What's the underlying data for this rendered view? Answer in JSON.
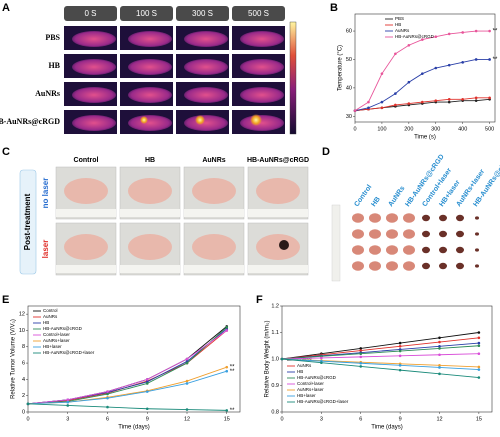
{
  "panel_labels": [
    "A",
    "B",
    "C",
    "D",
    "E",
    "F"
  ],
  "thermal": {
    "times": [
      "0 S",
      "100 S",
      "300 S",
      "500 S"
    ],
    "groups": [
      "PBS",
      "HB",
      "AuNRs",
      "HB-AuNRs@cRGD"
    ]
  },
  "photos": {
    "columns": [
      "Control",
      "HB",
      "AuNRs",
      "HB-AuNRs@cRGD"
    ],
    "side_label": "Post-treatment",
    "rows": [
      "no laser",
      "laser"
    ]
  },
  "tumors": {
    "labels": [
      "Control",
      "HB",
      "AuNRs",
      "HB-AuNRs@cRGD",
      "Control+laser",
      "HB+laser",
      "AuNRs+laser",
      "HB-AuNRs@cRGD+laser"
    ]
  },
  "chart_data": [
    {
      "type": "line",
      "xlabel": "Time (s)",
      "ylabel": "Temperature (°C)",
      "x": [
        0,
        50,
        100,
        150,
        200,
        250,
        300,
        350,
        400,
        450,
        500
      ],
      "xlim": [
        0,
        520
      ],
      "xticks": [
        0,
        100,
        200,
        300,
        400,
        500
      ],
      "ylim": [
        28,
        66
      ],
      "yticks": [
        30,
        40,
        50,
        60
      ],
      "legend": "upper left",
      "series": [
        {
          "name": "PBS",
          "color": "#222222",
          "values": [
            32,
            32.5,
            33,
            33.5,
            34,
            34.5,
            35,
            35,
            35.5,
            35.5,
            36
          ]
        },
        {
          "name": "HB",
          "color": "#e0312b",
          "values": [
            32,
            32.5,
            33,
            34,
            34.5,
            35,
            35.5,
            36,
            36,
            36.5,
            36.5
          ]
        },
        {
          "name": "AuNRs",
          "color": "#2a3fa8",
          "values": [
            32,
            33,
            35,
            38,
            42,
            45,
            47,
            48,
            49,
            50,
            50
          ]
        },
        {
          "name": "HB-AuNRs@cRGD",
          "color": "#e8559a",
          "values": [
            32,
            35,
            45,
            52,
            55,
            57,
            58,
            59,
            59.5,
            60,
            60
          ]
        }
      ],
      "annotations": [
        {
          "text": "**",
          "series": 3
        },
        {
          "text": "**",
          "series": 2
        }
      ]
    },
    {
      "type": "line",
      "xlabel": "Time (days)",
      "ylabel": "Relative Tumor Volume (V/V₀)",
      "x": [
        0,
        3,
        6,
        9,
        12,
        15
      ],
      "xlim": [
        0,
        16
      ],
      "xticks": [
        0,
        3,
        6,
        9,
        12,
        15
      ],
      "ylim": [
        0,
        13
      ],
      "yticks": [
        0,
        2,
        4,
        6,
        8,
        10,
        12
      ],
      "legend": "upper left",
      "series": [
        {
          "name": "Control",
          "color": "#111111",
          "values": [
            1,
            1.5,
            2.5,
            4,
            6.5,
            10.5
          ]
        },
        {
          "name": "AuNRs",
          "color": "#e0312b",
          "values": [
            1,
            1.4,
            2.3,
            3.8,
            6,
            10
          ]
        },
        {
          "name": "HB",
          "color": "#2a3fa8",
          "values": [
            1,
            1.5,
            2.4,
            3.7,
            6.2,
            10.2
          ]
        },
        {
          "name": "HB-AuNRs@cRGD",
          "color": "#2e8b57",
          "values": [
            1,
            1.3,
            2.2,
            3.5,
            6,
            10.4
          ]
        },
        {
          "name": "Control+laser",
          "color": "#d94fd9",
          "values": [
            1,
            1.5,
            2.5,
            4,
            6.5,
            10
          ]
        },
        {
          "name": "AuNRs+laser",
          "color": "#f0a030",
          "values": [
            1,
            1.2,
            1.8,
            2.6,
            3.8,
            5.5
          ]
        },
        {
          "name": "HB+laser",
          "color": "#3aa0e0",
          "values": [
            1,
            1.2,
            1.7,
            2.5,
            3.5,
            5
          ]
        },
        {
          "name": "HB-AuNRs@cRGD+laser",
          "color": "#1a8a7a",
          "values": [
            1,
            0.8,
            0.6,
            0.4,
            0.3,
            0.2
          ]
        }
      ],
      "annotations": [
        {
          "text": "**",
          "series": 5
        },
        {
          "text": "**",
          "series": 6
        },
        {
          "text": "**",
          "series": 7
        }
      ]
    },
    {
      "type": "line",
      "xlabel": "Time (days)",
      "ylabel": "Relative Body Weight (m/m₀)",
      "x": [
        0,
        3,
        6,
        9,
        12,
        15
      ],
      "xlim": [
        0,
        16
      ],
      "xticks": [
        0,
        3,
        6,
        9,
        12,
        15
      ],
      "ylim": [
        0.8,
        1.2
      ],
      "yticks": [
        0.8,
        0.9,
        {
          "value": 1,
          "label": "1.0"
        },
        1.1,
        1.2
      ],
      "legend": "lower left",
      "series": [
        {
          "name": "Control",
          "color": "#111111",
          "values": [
            1,
            1.02,
            1.04,
            1.06,
            1.08,
            1.1
          ]
        },
        {
          "name": "AuNRs",
          "color": "#e0312b",
          "values": [
            1,
            1.016,
            1.032,
            1.048,
            1.064,
            1.08
          ]
        },
        {
          "name": "HB",
          "color": "#2a3fa8",
          "values": [
            1,
            1.012,
            1.024,
            1.036,
            1.048,
            1.06
          ]
        },
        {
          "name": "HB-AuNRs@cRGD",
          "color": "#2e8b57",
          "values": [
            1,
            1.01,
            1.02,
            1.03,
            1.04,
            1.05
          ]
        },
        {
          "name": "Control+laser",
          "color": "#d94fd9",
          "values": [
            1,
            1.004,
            1.008,
            1.012,
            1.016,
            1.02
          ]
        },
        {
          "name": "AuNRs+laser",
          "color": "#f0a030",
          "values": [
            1,
            0.994,
            0.988,
            0.982,
            0.976,
            0.97
          ]
        },
        {
          "name": "HB+laser",
          "color": "#3aa0e0",
          "values": [
            1,
            0.992,
            0.984,
            0.976,
            0.968,
            0.96
          ]
        },
        {
          "name": "HB-AuNRs@cRGD+laser",
          "color": "#1a8a7a",
          "values": [
            1,
            0.986,
            0.972,
            0.958,
            0.944,
            0.93
          ]
        }
      ]
    }
  ]
}
